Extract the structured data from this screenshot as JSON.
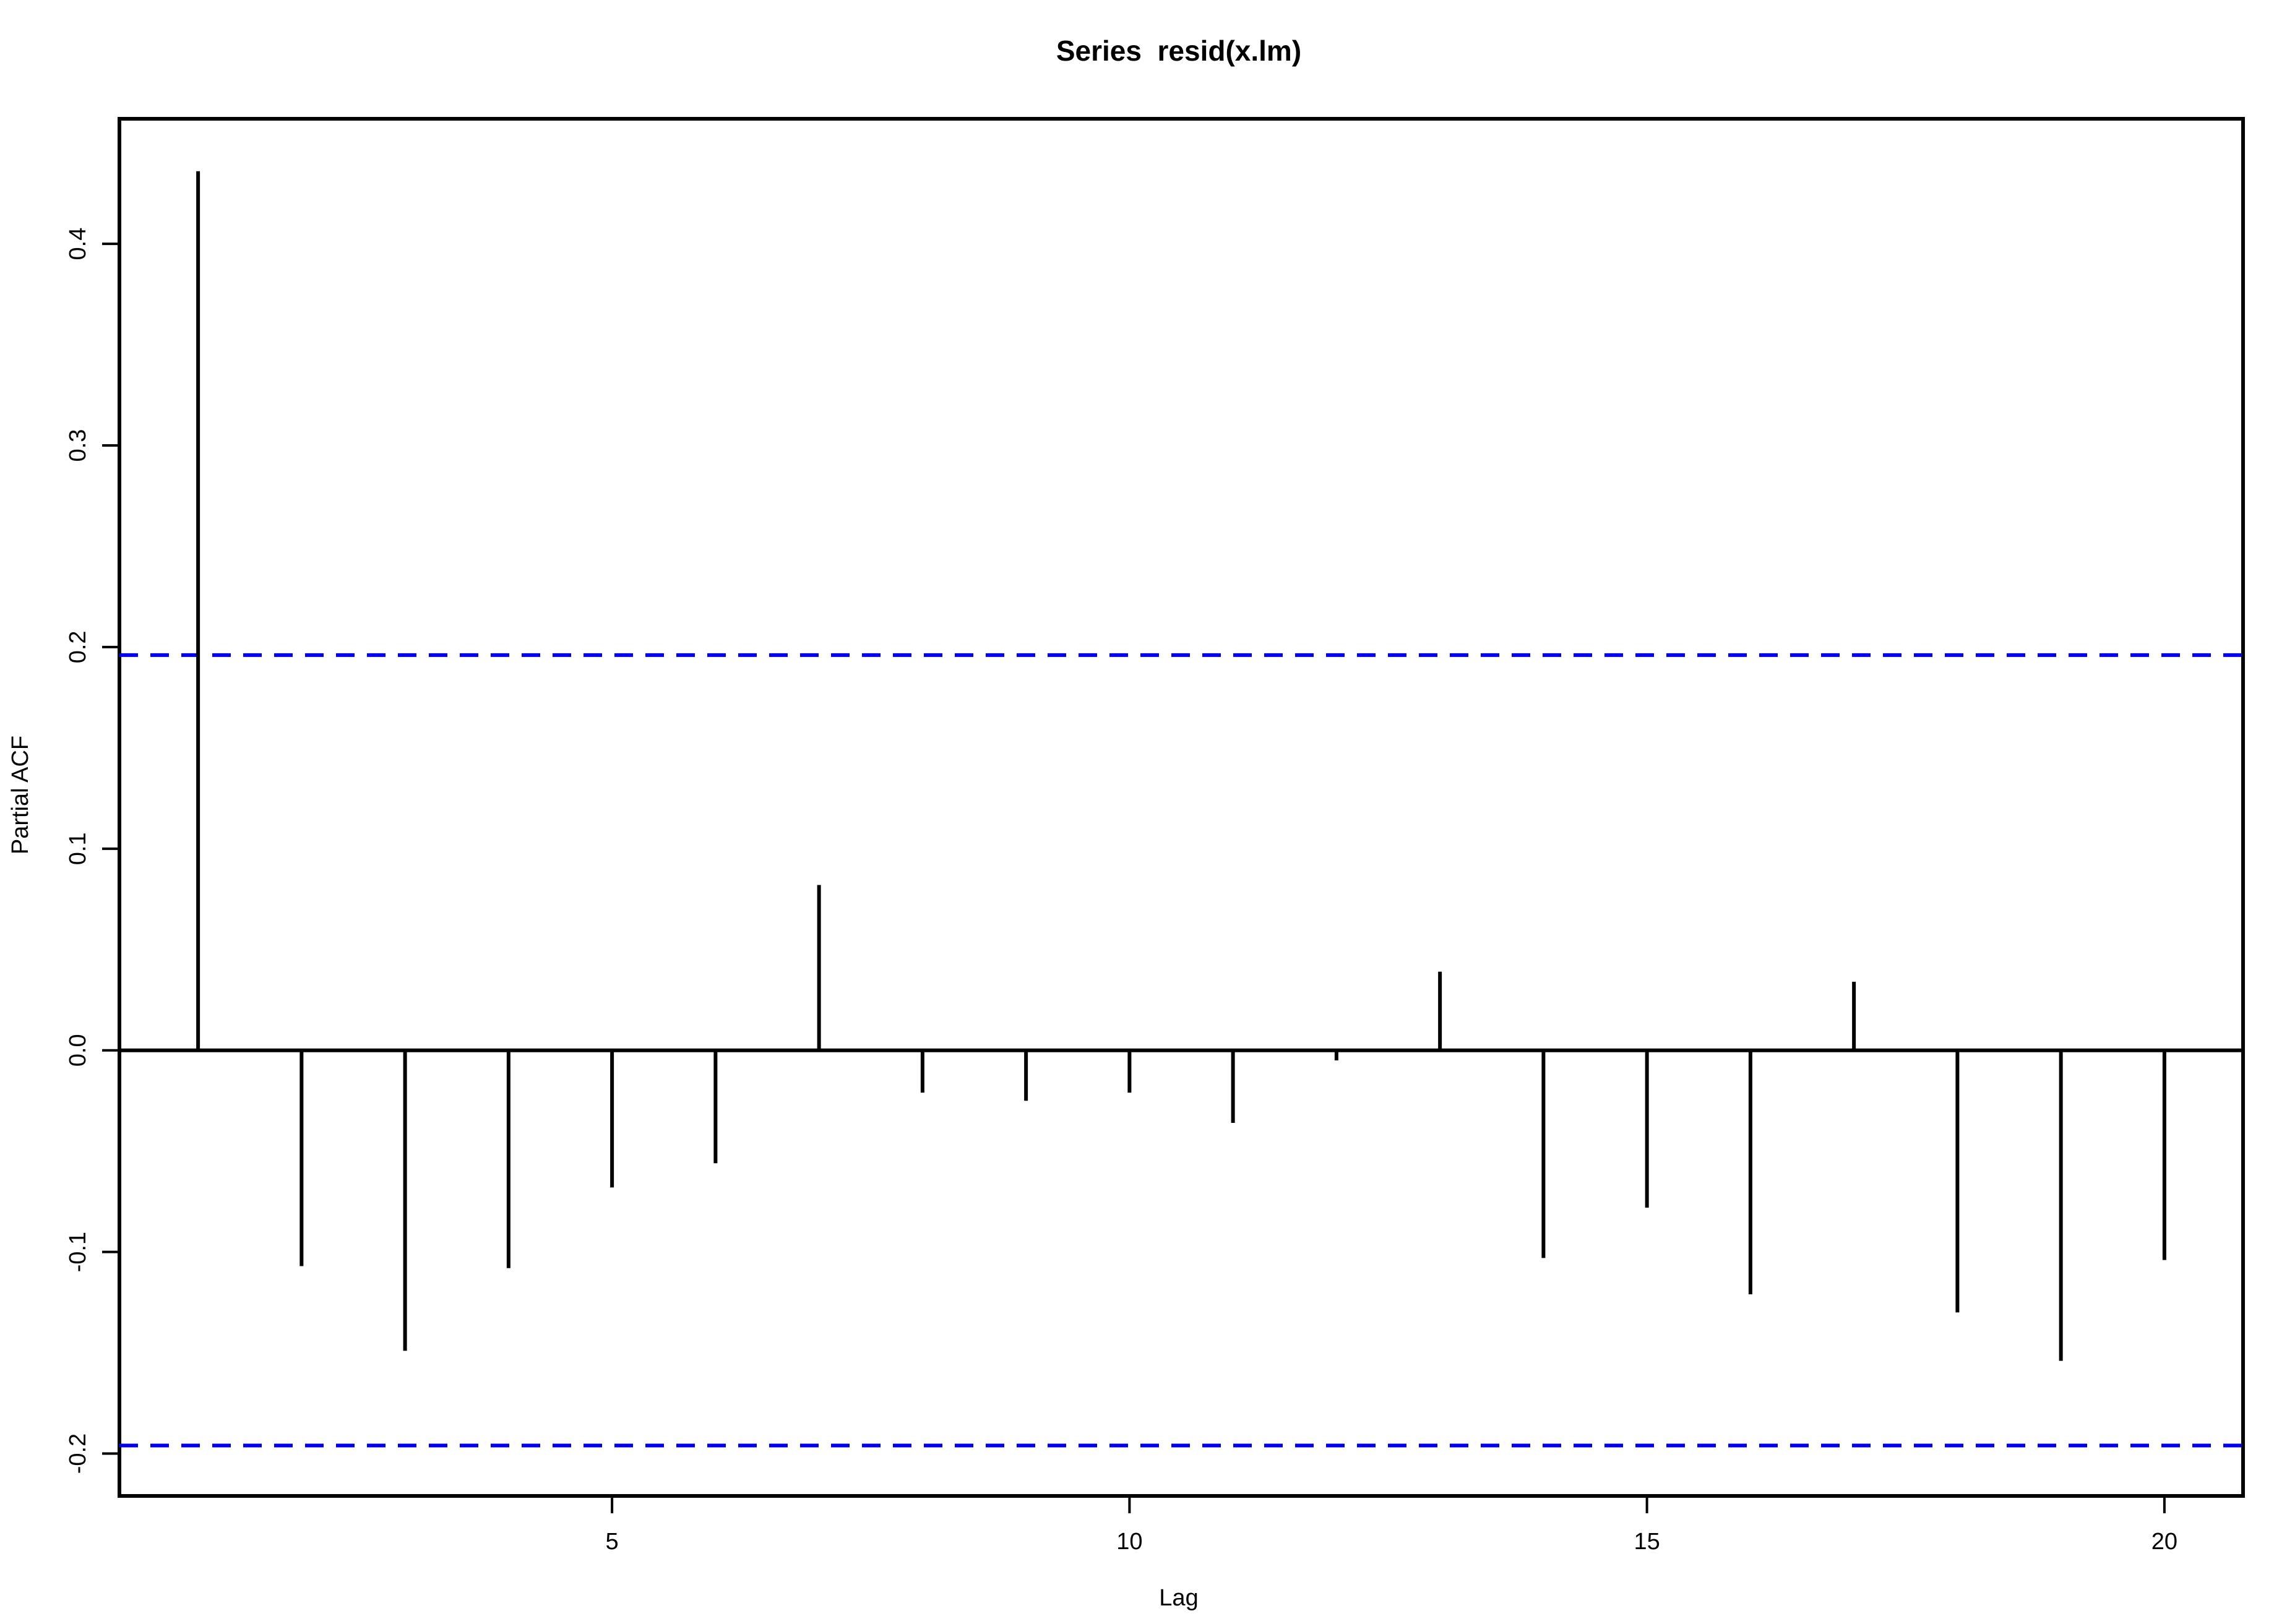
{
  "chart_data": {
    "type": "bar",
    "title": "Series  resid(x.lm)",
    "xlabel": "Lag",
    "ylabel": "Partial ACF",
    "x": [
      1,
      2,
      3,
      4,
      5,
      6,
      7,
      8,
      9,
      10,
      11,
      12,
      13,
      14,
      15,
      16,
      17,
      18,
      19,
      20
    ],
    "values": [
      0.436,
      -0.107,
      -0.149,
      -0.108,
      -0.068,
      -0.056,
      0.082,
      -0.021,
      -0.025,
      -0.021,
      -0.036,
      -0.005,
      0.039,
      -0.103,
      -0.078,
      -0.121,
      0.034,
      -0.13,
      -0.154,
      -0.104
    ],
    "xlim": [
      0.24,
      20.76
    ],
    "ylim": [
      -0.221,
      0.462
    ],
    "x_ticks": [
      5,
      10,
      15,
      20
    ],
    "y_ticks": [
      -0.2,
      -0.1,
      0.0,
      0.1,
      0.2,
      0.3,
      0.4
    ],
    "y_tick_labels": [
      "-0.2",
      "-0.1",
      "0.0",
      "0.1",
      "0.2",
      "0.3",
      "0.4"
    ],
    "x_tick_labels": [
      "5",
      "10",
      "15",
      "20"
    ],
    "confidence_bound": 0.196,
    "confidence_color": "#0000ee",
    "bar_color": "#000000",
    "grid": false
  }
}
